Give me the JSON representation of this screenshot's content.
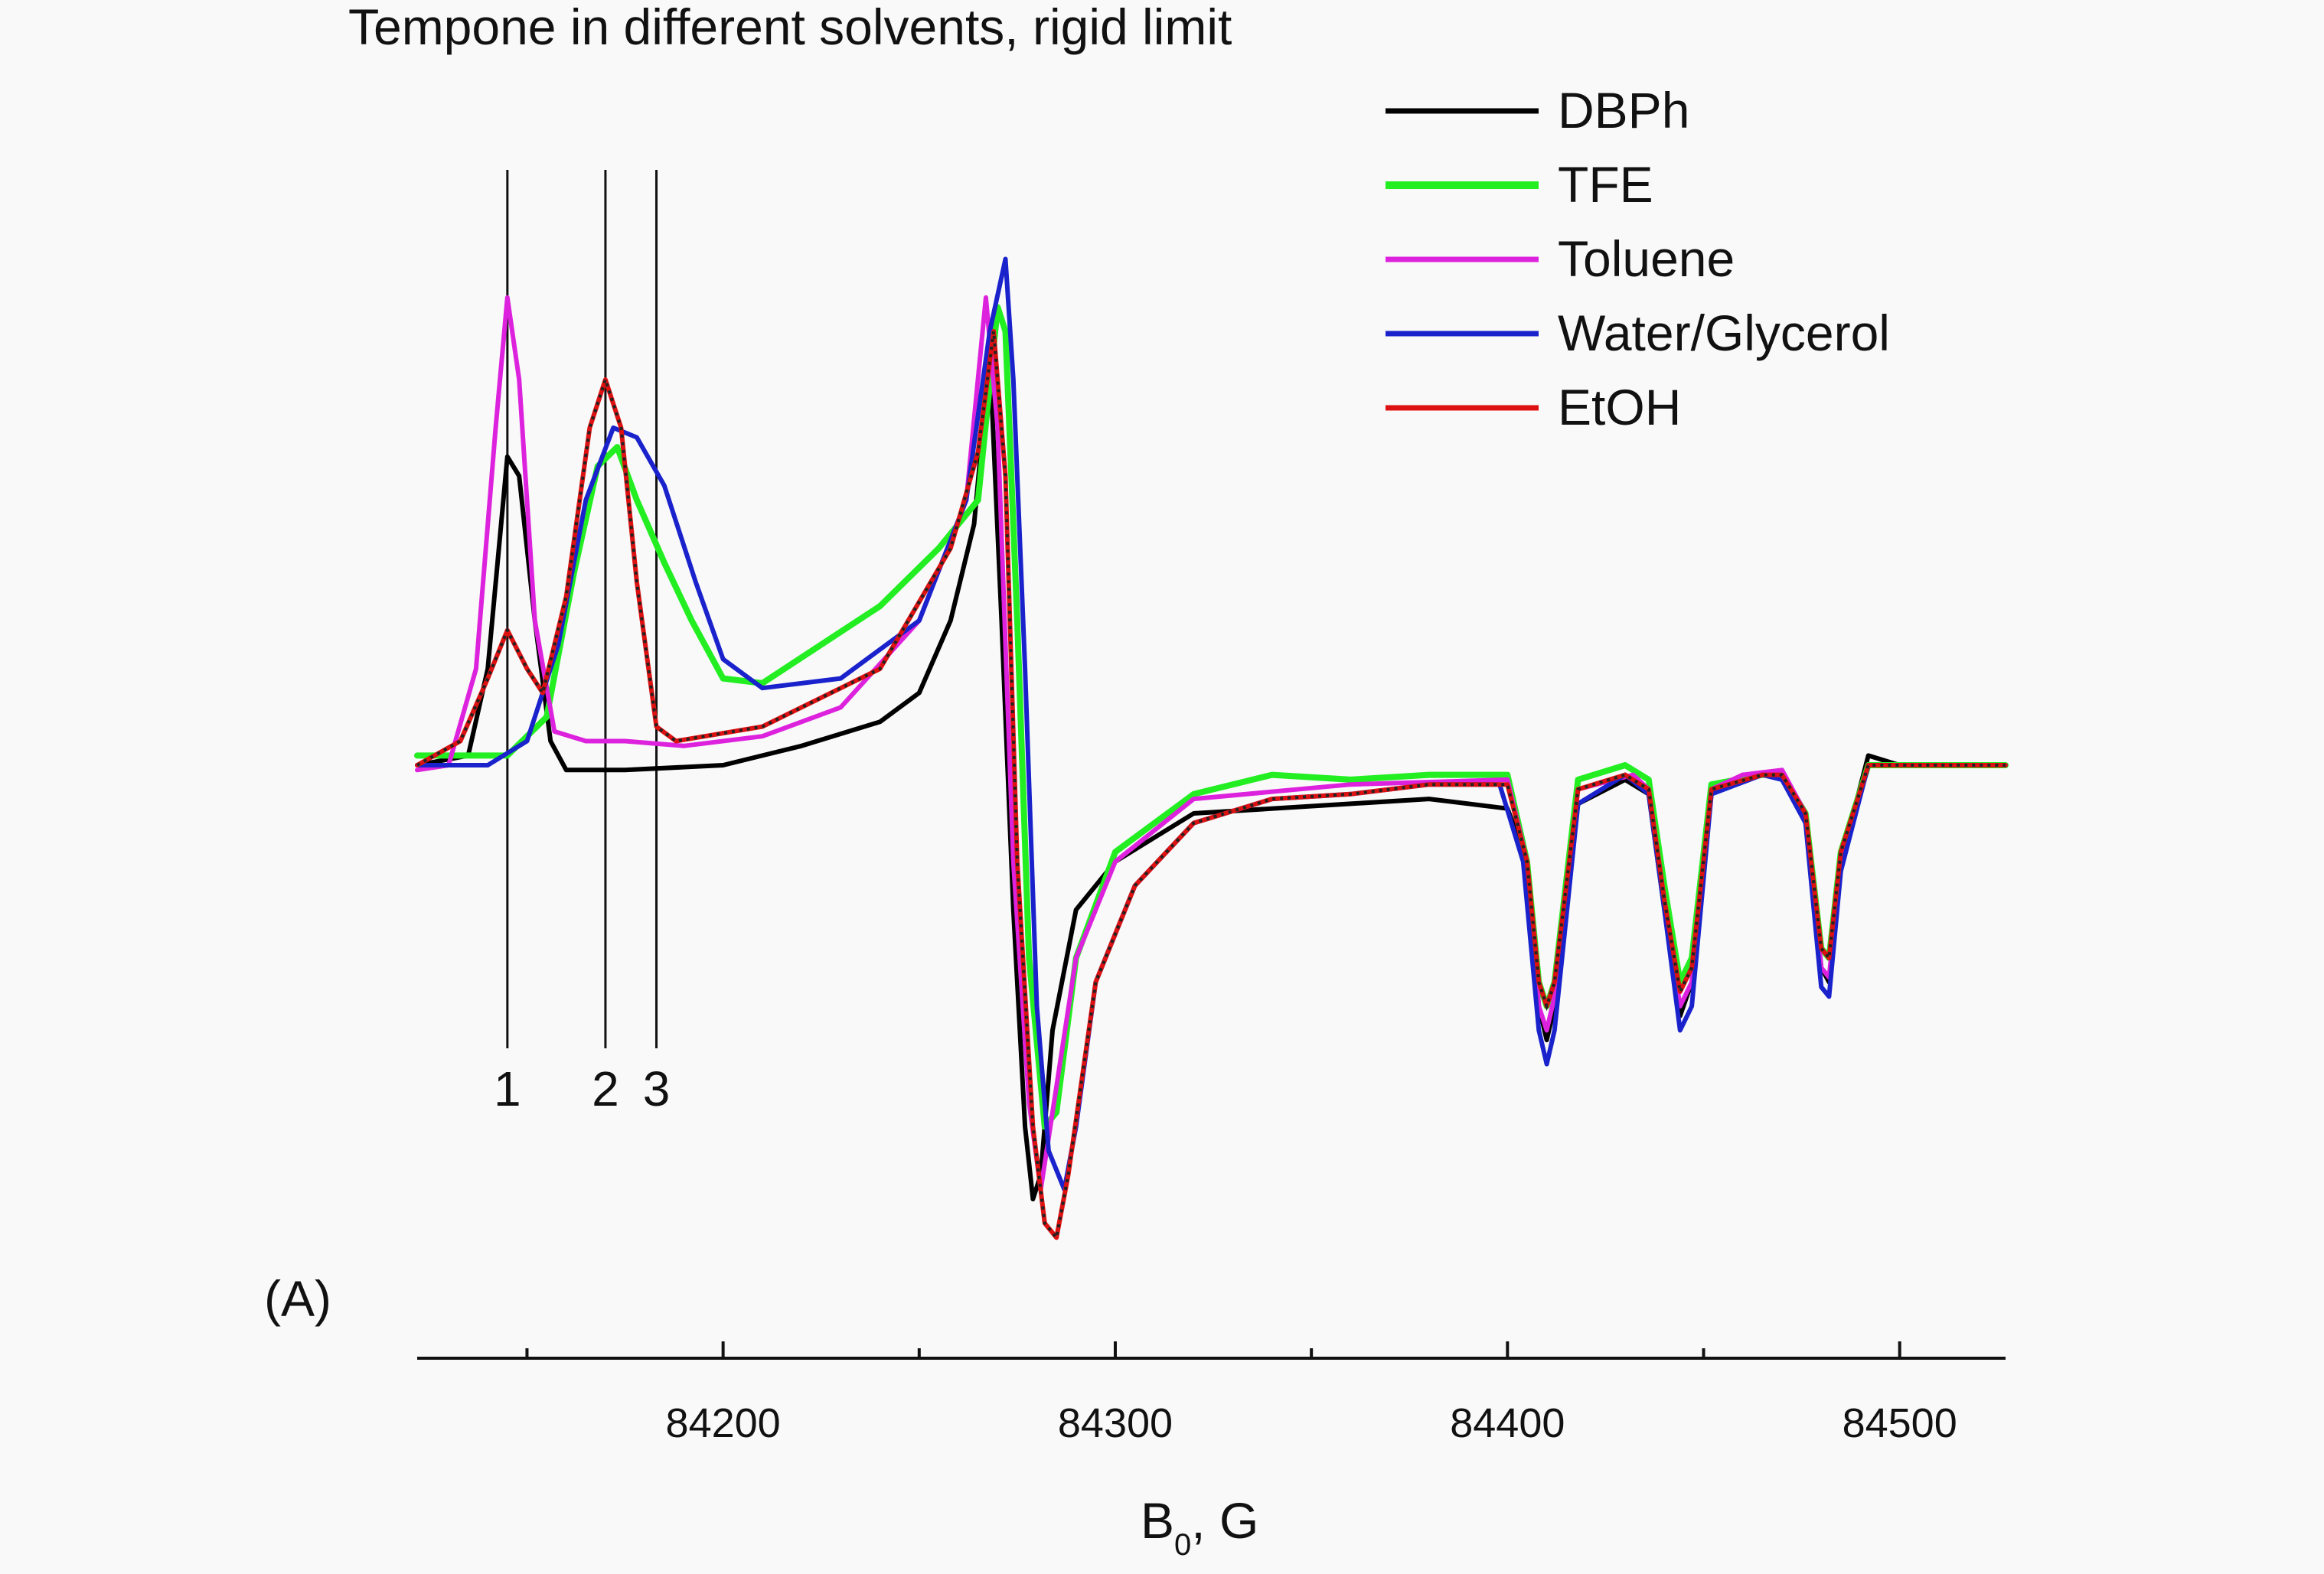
{
  "chart_data": {
    "type": "line",
    "title": "Tempone in different solvents, rigid limit",
    "panel_label": "(A)",
    "xlabel": {
      "main": "B",
      "sub": "0",
      "rest": ", G"
    },
    "ylabel": "",
    "xlim": [
      84122,
      84527
    ],
    "ylim": [
      -1.05,
      1.2
    ],
    "x_ticks_major": [
      84200,
      84300,
      84400,
      84500
    ],
    "x_ticks_minor": [
      84150,
      84250,
      84350,
      84450
    ],
    "grid": false,
    "legend_position": "top-right",
    "reference_lines": [
      {
        "label": "1",
        "x": 84145
      },
      {
        "label": "2",
        "x": 84170
      },
      {
        "label": "3",
        "x": 84183
      }
    ],
    "series": [
      {
        "name": "DBPh",
        "color": "#000000",
        "points": [
          [
            84122,
            0.0
          ],
          [
            84135,
            0.02
          ],
          [
            84140,
            0.2
          ],
          [
            84145,
            0.64
          ],
          [
            84148,
            0.6
          ],
          [
            84152,
            0.3
          ],
          [
            84156,
            0.05
          ],
          [
            84160,
            -0.01
          ],
          [
            84175,
            -0.01
          ],
          [
            84200,
            0.0
          ],
          [
            84220,
            0.04
          ],
          [
            84240,
            0.09
          ],
          [
            84250,
            0.15
          ],
          [
            84258,
            0.3
          ],
          [
            84264,
            0.5
          ],
          [
            84268,
            0.85
          ],
          [
            84271,
            0.3
          ],
          [
            84274,
            -0.3
          ],
          [
            84277,
            -0.75
          ],
          [
            84279,
            -0.9
          ],
          [
            84281,
            -0.85
          ],
          [
            84284,
            -0.55
          ],
          [
            84290,
            -0.3
          ],
          [
            84300,
            -0.2
          ],
          [
            84320,
            -0.1
          ],
          [
            84360,
            -0.08
          ],
          [
            84380,
            -0.07
          ],
          [
            84400,
            -0.09
          ],
          [
            84405,
            -0.2
          ],
          [
            84408,
            -0.5
          ],
          [
            84410,
            -0.57
          ],
          [
            84412,
            -0.5
          ],
          [
            84418,
            -0.08
          ],
          [
            84430,
            -0.03
          ],
          [
            84436,
            -0.06
          ],
          [
            84440,
            -0.3
          ],
          [
            84444,
            -0.52
          ],
          [
            84447,
            -0.45
          ],
          [
            84452,
            -0.06
          ],
          [
            84460,
            -0.02
          ],
          [
            84470,
            -0.02
          ],
          [
            84476,
            -0.1
          ],
          [
            84480,
            -0.42
          ],
          [
            84482,
            -0.45
          ],
          [
            84485,
            -0.2
          ],
          [
            84492,
            0.02
          ],
          [
            84500,
            0.0
          ],
          [
            84527,
            0.0
          ]
        ]
      },
      {
        "name": "TFE",
        "color": "#22ee22",
        "points": [
          [
            84122,
            0.02
          ],
          [
            84135,
            0.02
          ],
          [
            84145,
            0.02
          ],
          [
            84155,
            0.1
          ],
          [
            84162,
            0.4
          ],
          [
            84168,
            0.62
          ],
          [
            84173,
            0.66
          ],
          [
            84178,
            0.55
          ],
          [
            84185,
            0.42
          ],
          [
            84192,
            0.3
          ],
          [
            84200,
            0.18
          ],
          [
            84210,
            0.17
          ],
          [
            84225,
            0.25
          ],
          [
            84240,
            0.33
          ],
          [
            84255,
            0.45
          ],
          [
            84265,
            0.55
          ],
          [
            84270,
            0.95
          ],
          [
            84272,
            0.9
          ],
          [
            84275,
            0.3
          ],
          [
            84278,
            -0.4
          ],
          [
            84282,
            -0.75
          ],
          [
            84285,
            -0.72
          ],
          [
            84290,
            -0.4
          ],
          [
            84300,
            -0.18
          ],
          [
            84320,
            -0.06
          ],
          [
            84340,
            -0.02
          ],
          [
            84360,
            -0.03
          ],
          [
            84380,
            -0.02
          ],
          [
            84400,
            -0.02
          ],
          [
            84405,
            -0.2
          ],
          [
            84408,
            -0.45
          ],
          [
            84410,
            -0.5
          ],
          [
            84412,
            -0.45
          ],
          [
            84418,
            -0.03
          ],
          [
            84430,
            0.0
          ],
          [
            84436,
            -0.03
          ],
          [
            84440,
            -0.25
          ],
          [
            84444,
            -0.45
          ],
          [
            84447,
            -0.4
          ],
          [
            84452,
            -0.04
          ],
          [
            84465,
            -0.02
          ],
          [
            84470,
            -0.02
          ],
          [
            84476,
            -0.1
          ],
          [
            84480,
            -0.38
          ],
          [
            84482,
            -0.4
          ],
          [
            84485,
            -0.18
          ],
          [
            84492,
            0.0
          ],
          [
            84527,
            0.0
          ]
        ]
      },
      {
        "name": "Toluene",
        "color": "#dd22dd",
        "points": [
          [
            84122,
            -0.01
          ],
          [
            84130,
            0.0
          ],
          [
            84137,
            0.2
          ],
          [
            84142,
            0.7
          ],
          [
            84145,
            0.97
          ],
          [
            84148,
            0.8
          ],
          [
            84152,
            0.3
          ],
          [
            84157,
            0.07
          ],
          [
            84165,
            0.05
          ],
          [
            84175,
            0.05
          ],
          [
            84190,
            0.04
          ],
          [
            84210,
            0.06
          ],
          [
            84230,
            0.12
          ],
          [
            84250,
            0.3
          ],
          [
            84262,
            0.55
          ],
          [
            84267,
            0.97
          ],
          [
            84270,
            0.7
          ],
          [
            84274,
            -0.2
          ],
          [
            84278,
            -0.7
          ],
          [
            84281,
            -0.88
          ],
          [
            84284,
            -0.72
          ],
          [
            84290,
            -0.4
          ],
          [
            84300,
            -0.2
          ],
          [
            84320,
            -0.07
          ],
          [
            84360,
            -0.04
          ],
          [
            84400,
            -0.03
          ],
          [
            84405,
            -0.2
          ],
          [
            84408,
            -0.5
          ],
          [
            84410,
            -0.55
          ],
          [
            84412,
            -0.48
          ],
          [
            84418,
            -0.05
          ],
          [
            84432,
            -0.02
          ],
          [
            84436,
            -0.05
          ],
          [
            84440,
            -0.28
          ],
          [
            84444,
            -0.5
          ],
          [
            84447,
            -0.45
          ],
          [
            84452,
            -0.05
          ],
          [
            84460,
            -0.02
          ],
          [
            84470,
            -0.01
          ],
          [
            84476,
            -0.1
          ],
          [
            84480,
            -0.42
          ],
          [
            84482,
            -0.44
          ],
          [
            84485,
            -0.2
          ],
          [
            84492,
            0.0
          ],
          [
            84527,
            0.0
          ]
        ]
      },
      {
        "name": "Water/Glycerol",
        "color": "#1a22cc",
        "points": [
          [
            84122,
            0.0
          ],
          [
            84140,
            0.0
          ],
          [
            84150,
            0.05
          ],
          [
            84158,
            0.25
          ],
          [
            84165,
            0.55
          ],
          [
            84172,
            0.7
          ],
          [
            84178,
            0.68
          ],
          [
            84185,
            0.58
          ],
          [
            84193,
            0.38
          ],
          [
            84200,
            0.22
          ],
          [
            84210,
            0.16
          ],
          [
            84230,
            0.18
          ],
          [
            84250,
            0.3
          ],
          [
            84262,
            0.55
          ],
          [
            84268,
            0.9
          ],
          [
            84272,
            1.05
          ],
          [
            84274,
            0.8
          ],
          [
            84277,
            0.2
          ],
          [
            84280,
            -0.5
          ],
          [
            84283,
            -0.8
          ],
          [
            84287,
            -0.88
          ],
          [
            84290,
            -0.75
          ],
          [
            84295,
            -0.45
          ],
          [
            84305,
            -0.25
          ],
          [
            84320,
            -0.12
          ],
          [
            84340,
            -0.07
          ],
          [
            84360,
            -0.06
          ],
          [
            84380,
            -0.04
          ],
          [
            84398,
            -0.04
          ],
          [
            84404,
            -0.2
          ],
          [
            84408,
            -0.55
          ],
          [
            84410,
            -0.62
          ],
          [
            84412,
            -0.55
          ],
          [
            84418,
            -0.08
          ],
          [
            84430,
            -0.02
          ],
          [
            84436,
            -0.06
          ],
          [
            84440,
            -0.3
          ],
          [
            84444,
            -0.55
          ],
          [
            84447,
            -0.5
          ],
          [
            84452,
            -0.06
          ],
          [
            84465,
            -0.02
          ],
          [
            84470,
            -0.03
          ],
          [
            84476,
            -0.12
          ],
          [
            84480,
            -0.46
          ],
          [
            84482,
            -0.48
          ],
          [
            84485,
            -0.22
          ],
          [
            84492,
            0.0
          ],
          [
            84527,
            0.0
          ]
        ]
      },
      {
        "name": "EtOH",
        "color": "#dd1111",
        "points": [
          [
            84122,
            0.0
          ],
          [
            84133,
            0.05
          ],
          [
            84140,
            0.18
          ],
          [
            84145,
            0.28
          ],
          [
            84150,
            0.2
          ],
          [
            84154,
            0.15
          ],
          [
            84160,
            0.35
          ],
          [
            84166,
            0.7
          ],
          [
            84170,
            0.8
          ],
          [
            84174,
            0.7
          ],
          [
            84178,
            0.38
          ],
          [
            84183,
            0.08
          ],
          [
            84188,
            0.05
          ],
          [
            84210,
            0.08
          ],
          [
            84240,
            0.2
          ],
          [
            84258,
            0.45
          ],
          [
            84265,
            0.65
          ],
          [
            84269,
            0.9
          ],
          [
            84272,
            0.6
          ],
          [
            84275,
            -0.2
          ],
          [
            84279,
            -0.75
          ],
          [
            84282,
            -0.95
          ],
          [
            84285,
            -0.98
          ],
          [
            84288,
            -0.85
          ],
          [
            84295,
            -0.45
          ],
          [
            84305,
            -0.25
          ],
          [
            84320,
            -0.12
          ],
          [
            84340,
            -0.07
          ],
          [
            84360,
            -0.06
          ],
          [
            84380,
            -0.04
          ],
          [
            84400,
            -0.04
          ],
          [
            84405,
            -0.2
          ],
          [
            84408,
            -0.45
          ],
          [
            84410,
            -0.5
          ],
          [
            84412,
            -0.45
          ],
          [
            84418,
            -0.05
          ],
          [
            84430,
            -0.02
          ],
          [
            84436,
            -0.05
          ],
          [
            84440,
            -0.28
          ],
          [
            84444,
            -0.47
          ],
          [
            84447,
            -0.42
          ],
          [
            84452,
            -0.05
          ],
          [
            84465,
            -0.02
          ],
          [
            84470,
            -0.02
          ],
          [
            84476,
            -0.1
          ],
          [
            84480,
            -0.38
          ],
          [
            84482,
            -0.4
          ],
          [
            84485,
            -0.18
          ],
          [
            84492,
            0.0
          ],
          [
            84527,
            0.0
          ]
        ]
      }
    ],
    "overlay_dotted": {
      "color": "#222222",
      "follows_series": "EtOH"
    }
  }
}
